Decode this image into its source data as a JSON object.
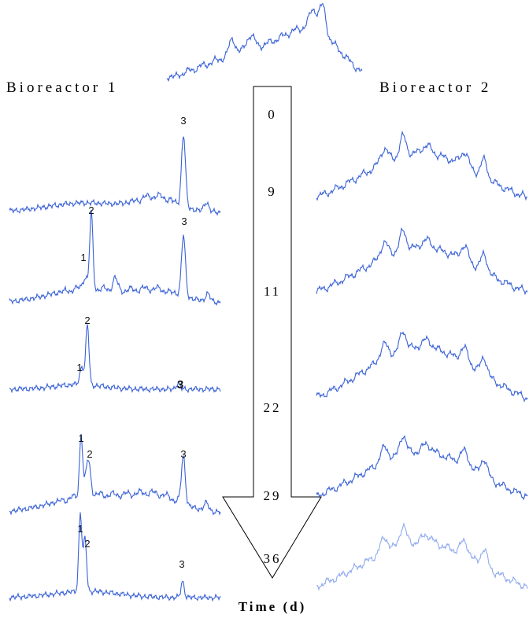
{
  "labels": {
    "left": "Bioreactor 1",
    "right": "Bioreactor 2",
    "axis": "Time (d)"
  },
  "timepoints": [
    "0",
    "9",
    "11",
    "22",
    "29",
    "36"
  ],
  "bioreactor_1_peaks": [
    [
      "3"
    ],
    [
      "2",
      "1",
      "3"
    ],
    [
      "2",
      "1",
      "3"
    ],
    [
      "1",
      "2",
      "3"
    ],
    [
      "1",
      "2",
      "3"
    ]
  ]
}
